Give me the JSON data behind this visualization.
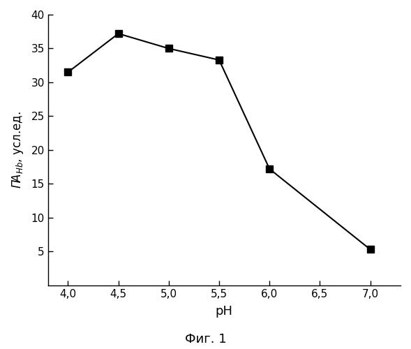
{
  "x": [
    4.0,
    4.5,
    5.0,
    5.5,
    6.0,
    7.0
  ],
  "y": [
    31.5,
    37.2,
    35.0,
    33.3,
    17.2,
    5.3
  ],
  "xlim": [
    3.8,
    7.3
  ],
  "ylim": [
    0,
    40
  ],
  "xticks": [
    4.0,
    4.5,
    5.0,
    5.5,
    6.0,
    6.5,
    7.0
  ],
  "yticks": [
    5,
    10,
    15,
    20,
    25,
    30,
    35,
    40
  ],
  "xlabel": "pH",
  "fig_label": "Фиг. 1",
  "line_color": "#000000",
  "marker": "s",
  "marker_size": 7,
  "marker_color": "#000000",
  "line_width": 1.5,
  "bg_color": "#ffffff"
}
